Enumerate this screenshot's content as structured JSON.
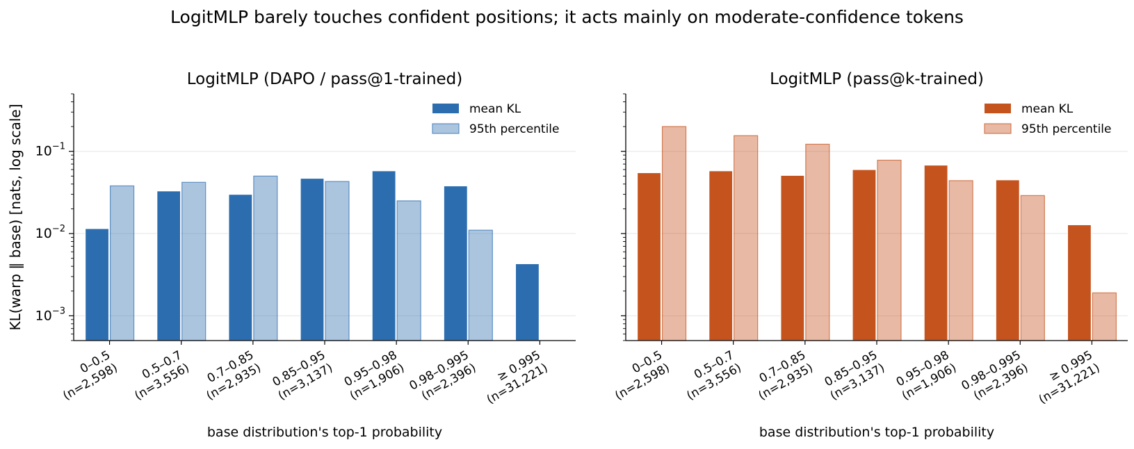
{
  "suptitle": "LogitMLP barely touches confident positions; it acts mainly on moderate-confidence tokens",
  "chart_data": [
    {
      "type": "bar",
      "title": "LogitMLP (DAPO / pass@1-trained)",
      "xlabel": "base distribution's top-1 probability",
      "ylabel": "KL(warp ‖ base)   [nats, log scale]",
      "yscale": "log",
      "ylim": [
        0.0005,
        0.5
      ],
      "yticks": [
        0.001,
        0.01,
        0.1
      ],
      "ytick_labels": [
        [
          "10",
          "−3"
        ],
        [
          "10",
          "−2"
        ],
        [
          "10",
          "−1"
        ]
      ],
      "grid": "y",
      "legend": "top-right",
      "categories": [
        [
          "0–0.5",
          "(n=2,598)"
        ],
        [
          "0.5–0.7",
          "(n=3,556)"
        ],
        [
          "0.7–0.85",
          "(n=2,935)"
        ],
        [
          "0.85–0.95",
          "(n=3,137)"
        ],
        [
          "0.95–0.98",
          "(n=1,906)"
        ],
        [
          "0.98–0.995",
          "(n=2,396)"
        ],
        [
          "≥ 0.995",
          "(n=31,221)"
        ]
      ],
      "series": [
        {
          "name": "mean KL",
          "color": "#2c6db0",
          "opacity": 1.0,
          "values": [
            0.0115,
            0.033,
            0.03,
            0.047,
            0.058,
            0.038,
            0.0043
          ]
        },
        {
          "name": "95th percentile",
          "color": "#2c6db0",
          "opacity": 0.4,
          "values": [
            0.038,
            0.042,
            0.05,
            0.043,
            0.025,
            0.011,
            null
          ]
        }
      ]
    },
    {
      "type": "bar",
      "title": "LogitMLP (pass@k-trained)",
      "xlabel": "base distribution's top-1 probability",
      "ylabel": "",
      "yscale": "log",
      "ylim": [
        0.0005,
        0.5
      ],
      "yticks": [
        0.001,
        0.01,
        0.1
      ],
      "ytick_labels": [],
      "grid": "y",
      "legend": "top-right",
      "categories": [
        [
          "0–0.5",
          "(n=2,598)"
        ],
        [
          "0.5–0.7",
          "(n=3,556)"
        ],
        [
          "0.7–0.85",
          "(n=2,935)"
        ],
        [
          "0.85–0.95",
          "(n=3,137)"
        ],
        [
          "0.95–0.98",
          "(n=1,906)"
        ],
        [
          "0.98–0.995",
          "(n=2,396)"
        ],
        [
          "≥ 0.995",
          "(n=31,221)"
        ]
      ],
      "series": [
        {
          "name": "mean KL",
          "color": "#c5531d",
          "opacity": 1.0,
          "values": [
            0.055,
            0.058,
            0.051,
            0.06,
            0.068,
            0.045,
            0.0128
          ]
        },
        {
          "name": "95th percentile",
          "color": "#c5531d",
          "opacity": 0.4,
          "values": [
            0.2,
            0.155,
            0.122,
            0.078,
            0.044,
            0.029,
            0.0019
          ]
        }
      ]
    }
  ]
}
